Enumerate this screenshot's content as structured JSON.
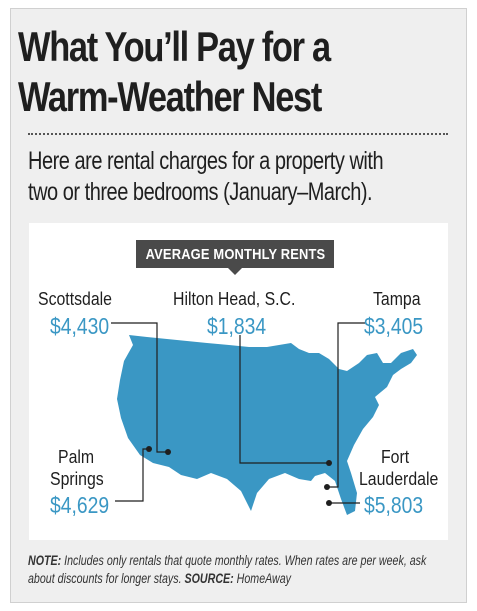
{
  "header": {
    "title_line1": "What You’ll Pay for a",
    "title_line2": "Warm-Weather Nest",
    "subtitle_line1": "Here are rental charges for a property with",
    "subtitle_line2": "two or three bedrooms (January–March)."
  },
  "map": {
    "label": "AVERAGE MONTHLY RENTS",
    "fill_color": "#3a97c4"
  },
  "chart_data": {
    "type": "map",
    "title": "AVERAGE MONTHLY RENTS",
    "unit": "USD per month",
    "locations": [
      {
        "name": "Scottsdale",
        "value": 4430,
        "display": "$4,430"
      },
      {
        "name": "Hilton Head, S.C.",
        "value": 1834,
        "display": "$1,834"
      },
      {
        "name": "Tampa",
        "value": 3405,
        "display": "$3,405"
      },
      {
        "name": "Palm Springs",
        "name_line1": "Palm",
        "name_line2": "Springs",
        "value": 4629,
        "display": "$4,629"
      },
      {
        "name": "Fort Lauderdale",
        "name_line1": "Fort",
        "name_line2": "Lauderdale",
        "value": 5803,
        "display": "$5,803"
      }
    ]
  },
  "footer": {
    "note_label": "NOTE:",
    "note_text": " Includes only rentals that quote monthly rates. When rates are per week, ask about discounts for longer stays. ",
    "source_label": "SOURCE:",
    "source_text": " HomeAway"
  },
  "colors": {
    "accent": "#3a97c4",
    "background": "#efefef",
    "label_bg": "#4a4a4a"
  }
}
